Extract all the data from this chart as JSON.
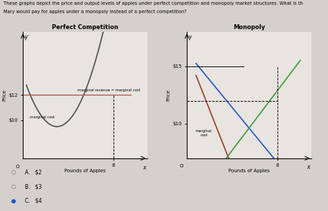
{
  "title_line1": "These graphs depict the price and output levels of apples under perfect competition and monopoly market structures. What is th",
  "title_line2": "Mary would pay for apples under a monopoly instead of a perfect competition?",
  "pc_title": "Perfect Competition",
  "mono_title": "Monopoly",
  "pc_xlabel": "Pounds of Apples",
  "mono_xlabel": "Pounds of Apples",
  "pc_ylabel": "Price",
  "mono_ylabel": "Price",
  "mr_mc_label_pc": "marginal revenue = marginal cost",
  "mc_label_pc": "marginal cost",
  "mc_label_mono": "marginal\ncost",
  "bg_color": "#d4d0cb",
  "plot_bg": "#e8e5e0",
  "options": [
    "A.   $2",
    "B.   $3",
    "C.   $4"
  ],
  "selected": 2,
  "mc_curve_color": "#555555",
  "hline_color": "#c85040",
  "mono_demand_color": "#3355cc",
  "mono_mr_color": "#994433",
  "mono_mc_color": "#449944"
}
